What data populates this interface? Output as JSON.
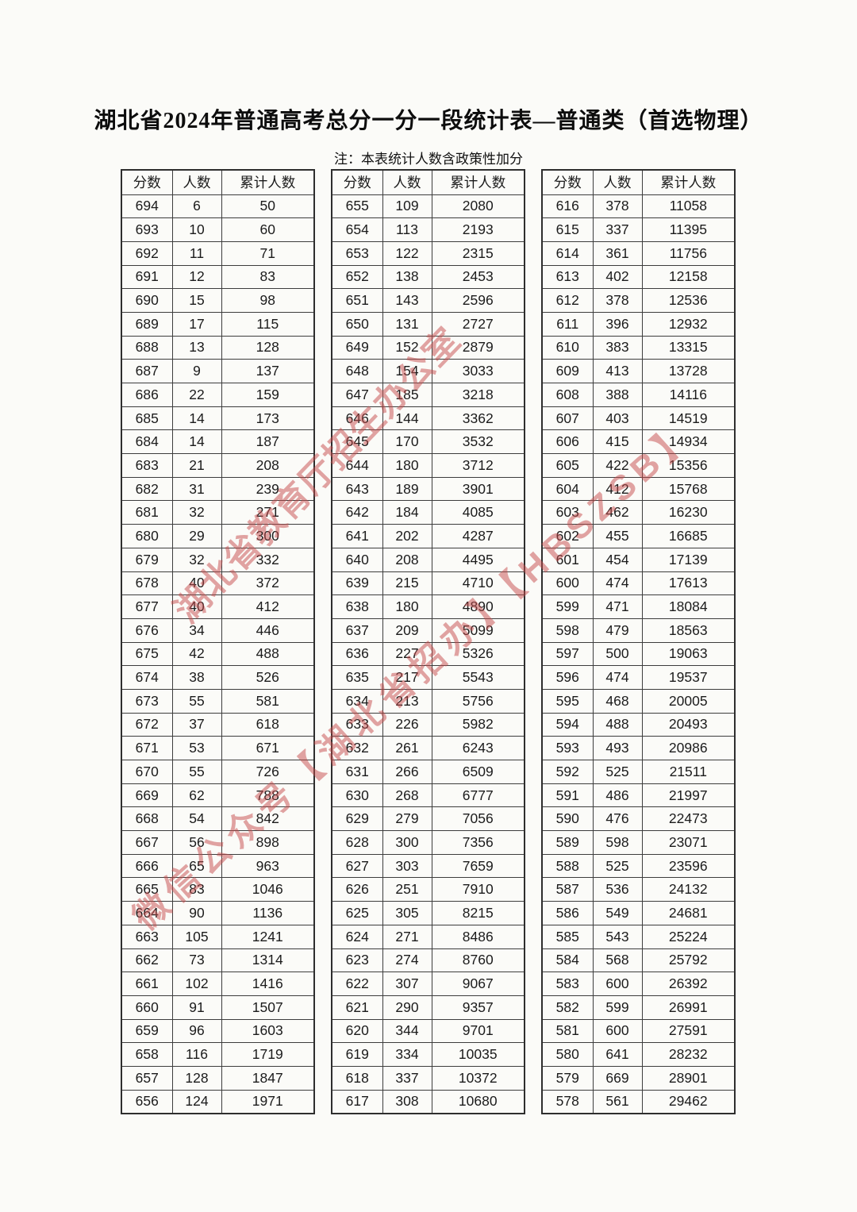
{
  "page": {
    "title": "湖北省2024年普通高考总分一分一段统计表—普通类（首选物理）",
    "note": "注：本表统计人数含政策性加分",
    "background_color": "#fbfbf8",
    "border_color": "#3d3d3d",
    "text_color": "#161616"
  },
  "columns": [
    "分数",
    "人数",
    "累计人数"
  ],
  "tables": [
    {
      "rows": [
        [
          694,
          6,
          50
        ],
        [
          693,
          10,
          60
        ],
        [
          692,
          11,
          71
        ],
        [
          691,
          12,
          83
        ],
        [
          690,
          15,
          98
        ],
        [
          689,
          17,
          115
        ],
        [
          688,
          13,
          128
        ],
        [
          687,
          9,
          137
        ],
        [
          686,
          22,
          159
        ],
        [
          685,
          14,
          173
        ],
        [
          684,
          14,
          187
        ],
        [
          683,
          21,
          208
        ],
        [
          682,
          31,
          239
        ],
        [
          681,
          32,
          271
        ],
        [
          680,
          29,
          300
        ],
        [
          679,
          32,
          332
        ],
        [
          678,
          40,
          372
        ],
        [
          677,
          40,
          412
        ],
        [
          676,
          34,
          446
        ],
        [
          675,
          42,
          488
        ],
        [
          674,
          38,
          526
        ],
        [
          673,
          55,
          581
        ],
        [
          672,
          37,
          618
        ],
        [
          671,
          53,
          671
        ],
        [
          670,
          55,
          726
        ],
        [
          669,
          62,
          788
        ],
        [
          668,
          54,
          842
        ],
        [
          667,
          56,
          898
        ],
        [
          666,
          65,
          963
        ],
        [
          665,
          83,
          1046
        ],
        [
          664,
          90,
          1136
        ],
        [
          663,
          105,
          1241
        ],
        [
          662,
          73,
          1314
        ],
        [
          661,
          102,
          1416
        ],
        [
          660,
          91,
          1507
        ],
        [
          659,
          96,
          1603
        ],
        [
          658,
          116,
          1719
        ],
        [
          657,
          128,
          1847
        ],
        [
          656,
          124,
          1971
        ]
      ]
    },
    {
      "rows": [
        [
          655,
          109,
          2080
        ],
        [
          654,
          113,
          2193
        ],
        [
          653,
          122,
          2315
        ],
        [
          652,
          138,
          2453
        ],
        [
          651,
          143,
          2596
        ],
        [
          650,
          131,
          2727
        ],
        [
          649,
          152,
          2879
        ],
        [
          648,
          154,
          3033
        ],
        [
          647,
          185,
          3218
        ],
        [
          646,
          144,
          3362
        ],
        [
          645,
          170,
          3532
        ],
        [
          644,
          180,
          3712
        ],
        [
          643,
          189,
          3901
        ],
        [
          642,
          184,
          4085
        ],
        [
          641,
          202,
          4287
        ],
        [
          640,
          208,
          4495
        ],
        [
          639,
          215,
          4710
        ],
        [
          638,
          180,
          4890
        ],
        [
          637,
          209,
          5099
        ],
        [
          636,
          227,
          5326
        ],
        [
          635,
          217,
          5543
        ],
        [
          634,
          213,
          5756
        ],
        [
          633,
          226,
          5982
        ],
        [
          632,
          261,
          6243
        ],
        [
          631,
          266,
          6509
        ],
        [
          630,
          268,
          6777
        ],
        [
          629,
          279,
          7056
        ],
        [
          628,
          300,
          7356
        ],
        [
          627,
          303,
          7659
        ],
        [
          626,
          251,
          7910
        ],
        [
          625,
          305,
          8215
        ],
        [
          624,
          271,
          8486
        ],
        [
          623,
          274,
          8760
        ],
        [
          622,
          307,
          9067
        ],
        [
          621,
          290,
          9357
        ],
        [
          620,
          344,
          9701
        ],
        [
          619,
          334,
          10035
        ],
        [
          618,
          337,
          10372
        ],
        [
          617,
          308,
          10680
        ]
      ]
    },
    {
      "rows": [
        [
          616,
          378,
          11058
        ],
        [
          615,
          337,
          11395
        ],
        [
          614,
          361,
          11756
        ],
        [
          613,
          402,
          12158
        ],
        [
          612,
          378,
          12536
        ],
        [
          611,
          396,
          12932
        ],
        [
          610,
          383,
          13315
        ],
        [
          609,
          413,
          13728
        ],
        [
          608,
          388,
          14116
        ],
        [
          607,
          403,
          14519
        ],
        [
          606,
          415,
          14934
        ],
        [
          605,
          422,
          15356
        ],
        [
          604,
          412,
          15768
        ],
        [
          603,
          462,
          16230
        ],
        [
          602,
          455,
          16685
        ],
        [
          601,
          454,
          17139
        ],
        [
          600,
          474,
          17613
        ],
        [
          599,
          471,
          18084
        ],
        [
          598,
          479,
          18563
        ],
        [
          597,
          500,
          19063
        ],
        [
          596,
          474,
          19537
        ],
        [
          595,
          468,
          20005
        ],
        [
          594,
          488,
          20493
        ],
        [
          593,
          493,
          20986
        ],
        [
          592,
          525,
          21511
        ],
        [
          591,
          486,
          21997
        ],
        [
          590,
          476,
          22473
        ],
        [
          589,
          598,
          23071
        ],
        [
          588,
          525,
          23596
        ],
        [
          587,
          536,
          24132
        ],
        [
          586,
          549,
          24681
        ],
        [
          585,
          543,
          25224
        ],
        [
          584,
          568,
          25792
        ],
        [
          583,
          600,
          26392
        ],
        [
          582,
          599,
          26991
        ],
        [
          581,
          600,
          27591
        ],
        [
          580,
          641,
          28232
        ],
        [
          579,
          669,
          28901
        ],
        [
          578,
          561,
          29462
        ]
      ]
    }
  ],
  "watermark": {
    "line1": "湖北省教育厅招生办公室",
    "line2": "微信公众号【湖北省招办】【HBSZSB】",
    "color": "#c64a4a"
  }
}
